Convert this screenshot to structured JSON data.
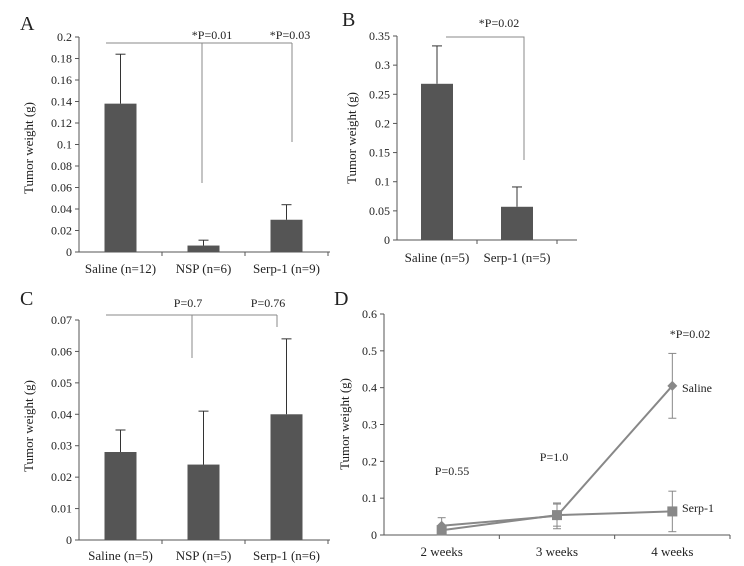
{
  "chart_data": [
    {
      "panel": "A",
      "type": "bar",
      "ylabel": "Tumor weight (g)",
      "ylim": [
        0,
        0.2
      ],
      "yticks": [
        "0",
        "0.02",
        "0.04",
        "0.06",
        "0.08",
        "0.1",
        "0.12",
        "0.14",
        "0.16",
        "0.18",
        "0.2"
      ],
      "categories": [
        "Saline (n=12)",
        "NSP (n=6)",
        "Serp-1 (n=9)"
      ],
      "values": [
        0.138,
        0.006,
        0.03
      ],
      "errors": [
        0.046,
        0.005,
        0.014
      ],
      "annotations": [
        "*P=0.01",
        "*P=0.03"
      ],
      "color": "#555555"
    },
    {
      "panel": "B",
      "type": "bar",
      "ylabel": "Tumor weight (g)",
      "ylim": [
        0,
        0.35
      ],
      "yticks": [
        "0",
        "0.05",
        "0.1",
        "0.15",
        "0.2",
        "0.25",
        "0.3",
        "0.35"
      ],
      "categories": [
        "Saline (n=5)",
        "Serp-1 (n=5)"
      ],
      "values": [
        0.268,
        0.057
      ],
      "errors": [
        0.065,
        0.034
      ],
      "annotations": [
        "*P=0.02"
      ],
      "color": "#555555"
    },
    {
      "panel": "C",
      "type": "bar",
      "ylabel": "Tumor weight (g)",
      "ylim": [
        0,
        0.07
      ],
      "yticks": [
        "0",
        "0.01",
        "0.02",
        "0.03",
        "0.04",
        "0.05",
        "0.06",
        "0.07"
      ],
      "categories": [
        "Saline (n=5)",
        "NSP (n=5)",
        "Serp-1 (n=6)"
      ],
      "values": [
        0.028,
        0.024,
        0.04
      ],
      "errors": [
        0.007,
        0.017,
        0.024
      ],
      "annotations": [
        "P=0.7",
        "P=0.76"
      ],
      "color": "#555555"
    },
    {
      "panel": "D",
      "type": "line",
      "ylabel": "Tumor weight (g)",
      "ylim": [
        0,
        0.6
      ],
      "yticks": [
        "0",
        "0.1",
        "0.2",
        "0.3",
        "0.4",
        "0.5",
        "0.6"
      ],
      "x": [
        "2 weeks",
        "3 weeks",
        "4 weeks"
      ],
      "series": [
        {
          "name": "Saline",
          "marker": "diamond",
          "values": [
            0.025,
            0.052,
            0.405
          ],
          "errors": [
            0.022,
            0.035,
            0.088
          ]
        },
        {
          "name": "Serp-1",
          "marker": "square",
          "values": [
            0.013,
            0.054,
            0.064
          ],
          "errors": [
            0.012,
            0.03,
            0.055
          ]
        }
      ],
      "annotations": [
        "P=0.55",
        "P=1.0",
        "*P=0.02"
      ],
      "color": "#888888"
    }
  ]
}
